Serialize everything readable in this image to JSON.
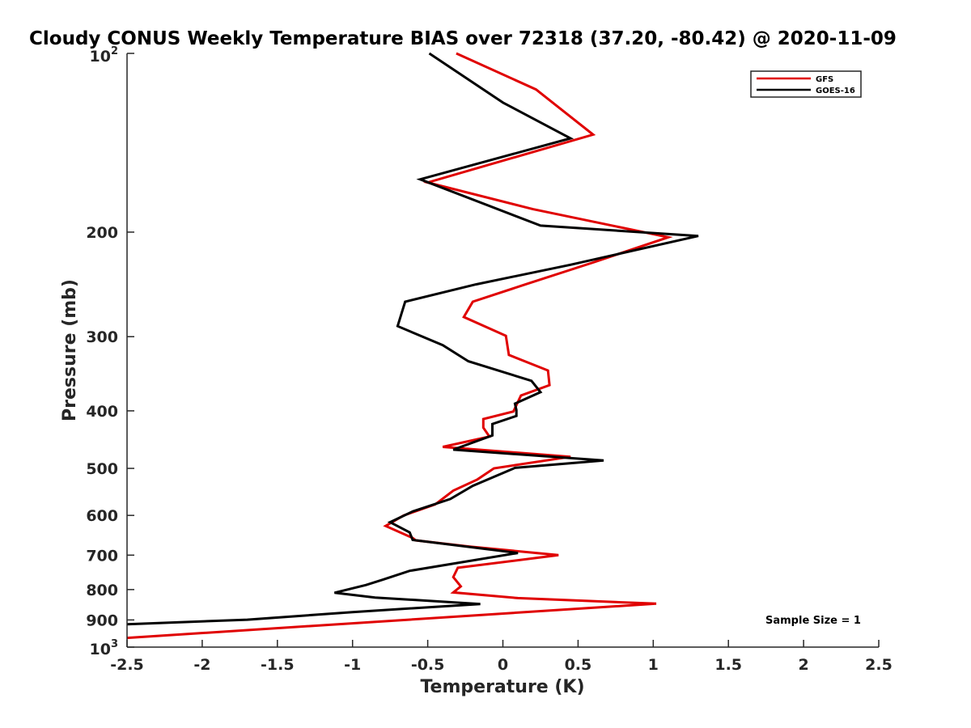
{
  "chart_data": {
    "type": "line",
    "title": "Cloudy CONUS Weekly Temperature BIAS over 72318 (37.20, -80.42) @ 2020-11-09",
    "xlabel": "Temperature (K)",
    "ylabel": "Pressure (mb)",
    "xlim": [
      -2.5,
      2.5
    ],
    "ylim": [
      100,
      1000
    ],
    "yscale": "log",
    "y_reversed": true,
    "grid": false,
    "legend_position": "top-right",
    "x_ticks": [
      -2.5,
      -2,
      -1.5,
      -1,
      -0.5,
      0,
      0.5,
      1,
      1.5,
      2,
      2.5
    ],
    "x_tick_labels": [
      "-2.5",
      "-2",
      "-1.5",
      "-1",
      "-0.5",
      "0",
      "0.5",
      "1",
      "1.5",
      "2",
      "2.5"
    ],
    "y_ticks": [
      200,
      300,
      400,
      500,
      600,
      700,
      800,
      900
    ],
    "y_tick_labels": [
      "200",
      "300",
      "400",
      "500",
      "600",
      "700",
      "800",
      "900"
    ],
    "y_top_label": {
      "base": "10",
      "exp": "2"
    },
    "y_bottom_label": {
      "base": "10",
      "exp": "3"
    },
    "annotation": "Sample Size = 1",
    "series": [
      {
        "name": "GFS",
        "color": "#e00000",
        "points": [
          [
            -0.31,
            100
          ],
          [
            0.22,
            115
          ],
          [
            0.6,
            137
          ],
          [
            -0.5,
            165
          ],
          [
            0.2,
            183
          ],
          [
            1.1,
            204
          ],
          [
            0.6,
            225
          ],
          [
            0.15,
            245
          ],
          [
            -0.2,
            262
          ],
          [
            -0.26,
            278
          ],
          [
            0.02,
            299
          ],
          [
            0.04,
            322
          ],
          [
            0.3,
            342
          ],
          [
            0.31,
            362
          ],
          [
            0.12,
            377
          ],
          [
            0.07,
            401
          ],
          [
            -0.13,
            413
          ],
          [
            -0.13,
            427
          ],
          [
            -0.09,
            442
          ],
          [
            -0.4,
            460
          ],
          [
            0.45,
            478
          ],
          [
            -0.06,
            500
          ],
          [
            -0.17,
            522
          ],
          [
            -0.33,
            545
          ],
          [
            -0.45,
            575
          ],
          [
            -0.66,
            600
          ],
          [
            -0.78,
            625
          ],
          [
            -0.6,
            655
          ],
          [
            -0.58,
            661
          ],
          [
            -0.22,
            677
          ],
          [
            0.37,
            700
          ],
          [
            -0.3,
            735
          ],
          [
            -0.33,
            762
          ],
          [
            -0.28,
            790
          ],
          [
            -0.33,
            809
          ],
          [
            0.1,
            827
          ],
          [
            1.02,
            845
          ],
          [
            -2.5,
            965
          ]
        ]
      },
      {
        "name": "GOES-16",
        "color": "#000000",
        "points": [
          [
            -0.49,
            100
          ],
          [
            0.0,
            121
          ],
          [
            0.45,
            139
          ],
          [
            -0.55,
            163
          ],
          [
            0.25,
            195
          ],
          [
            1.3,
            203
          ],
          [
            0.45,
            227
          ],
          [
            -0.18,
            245
          ],
          [
            -0.65,
            262
          ],
          [
            -0.7,
            288
          ],
          [
            -0.4,
            310
          ],
          [
            -0.23,
            330
          ],
          [
            0.19,
            356
          ],
          [
            0.25,
            372
          ],
          [
            0.08,
            389
          ],
          [
            0.09,
            399
          ],
          [
            0.09,
            408
          ],
          [
            -0.07,
            421
          ],
          [
            -0.07,
            440
          ],
          [
            -0.33,
            465
          ],
          [
            0.67,
            485
          ],
          [
            0.08,
            499
          ],
          [
            -0.2,
            535
          ],
          [
            -0.35,
            563
          ],
          [
            -0.6,
            591
          ],
          [
            -0.75,
            616
          ],
          [
            -0.62,
            641
          ],
          [
            -0.6,
            660
          ],
          [
            0.1,
            694
          ],
          [
            -0.62,
            744
          ],
          [
            -0.8,
            770
          ],
          [
            -0.91,
            786
          ],
          [
            -1.12,
            810
          ],
          [
            -0.85,
            825
          ],
          [
            -0.15,
            846
          ],
          [
            -1.0,
            873
          ],
          [
            -1.7,
            899
          ],
          [
            -2.5,
            915
          ]
        ]
      }
    ]
  }
}
